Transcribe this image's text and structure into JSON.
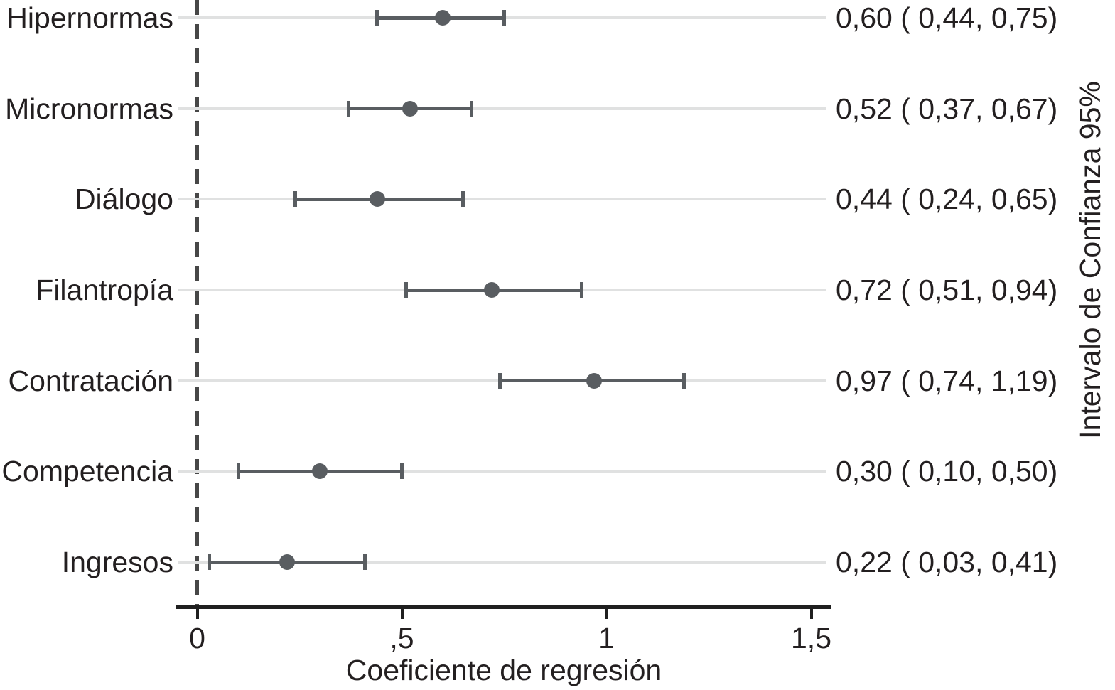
{
  "chart_data": {
    "type": "scatter",
    "variant": "forest-coefficient-plot",
    "title": "",
    "xlabel": "Coeficiente de regresión",
    "right_axis_label": "Intervalo de Confianza 95%",
    "xlim": [
      -0.05,
      1.55
    ],
    "grid": true,
    "reference_line_x": 0,
    "xticks": [
      {
        "value": 0,
        "label": "0"
      },
      {
        "value": 0.5,
        "label": ",5"
      },
      {
        "value": 1,
        "label": "1"
      },
      {
        "value": 1.5,
        "label": "1,5"
      }
    ],
    "rows": [
      {
        "category": "Hipernormas",
        "estimate": 0.6,
        "ci_low": 0.44,
        "ci_high": 0.75,
        "label": "0,60 ( 0,44, 0,75)"
      },
      {
        "category": "Micronormas",
        "estimate": 0.52,
        "ci_low": 0.37,
        "ci_high": 0.67,
        "label": "0,52 ( 0,37, 0,67)"
      },
      {
        "category": "Diálogo",
        "estimate": 0.44,
        "ci_low": 0.24,
        "ci_high": 0.65,
        "label": "0,44 ( 0,24, 0,65)"
      },
      {
        "category": "Filantropía",
        "estimate": 0.72,
        "ci_low": 0.51,
        "ci_high": 0.94,
        "label": "0,72 ( 0,51, 0,94)"
      },
      {
        "category": "Contratación",
        "estimate": 0.97,
        "ci_low": 0.74,
        "ci_high": 1.19,
        "label": "0,97 ( 0,74, 1,19)"
      },
      {
        "category": "Competencia",
        "estimate": 0.3,
        "ci_low": 0.1,
        "ci_high": 0.5,
        "label": "0,30 ( 0,10, 0,50)"
      },
      {
        "category": "Ingresos",
        "estimate": 0.22,
        "ci_low": 0.03,
        "ci_high": 0.41,
        "label": "0,22 ( 0,03, 0,41)"
      }
    ],
    "colors": {
      "marker": "#595d61",
      "error_bar": "#595d61",
      "gridline": "#e0e1e1",
      "axis": "#1f1f1f",
      "text": "#231f20",
      "reference_line": "#474747",
      "background": "#ffffff"
    }
  }
}
